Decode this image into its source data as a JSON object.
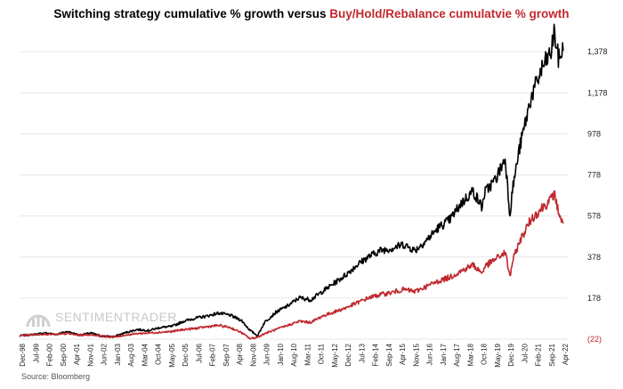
{
  "title": {
    "part1": "Switching strategy cumulative % growth versus ",
    "part2": "Buy/Hold/Rebalance cumulatvie % growth"
  },
  "watermark": {
    "text": "SENTIMENTRADER"
  },
  "source": "Source: Bloomberg",
  "colors": {
    "switching": "#000000",
    "buyhold": "#c0282d",
    "grid": "#e6e6e6"
  },
  "chart_data": {
    "type": "line",
    "title": "Switching strategy cumulative % growth versus Buy/Hold/Rebalance cumulatvie % growth",
    "xlabel": "",
    "ylabel": "",
    "y_axis_position": "right",
    "y_ticks": [
      -22,
      178,
      378,
      578,
      778,
      978,
      1178,
      1378
    ],
    "y_tick_labels": [
      "(22)",
      "178",
      "378",
      "578",
      "778",
      "978",
      "1,178",
      "1,378"
    ],
    "ylim": [
      -22,
      1500
    ],
    "x_tick_labels": [
      "Dec-98",
      "Jul-99",
      "Feb-00",
      "Sep-00",
      "Apr-01",
      "Nov-01",
      "Jun-02",
      "Jan-03",
      "Aug-03",
      "Mar-04",
      "Oct-04",
      "May-05",
      "Dec-05",
      "Jul-06",
      "Feb-07",
      "Sep-07",
      "Apr-08",
      "Nov-08",
      "Jun-09",
      "Jan-10",
      "Aug-10",
      "Mar-11",
      "Oct-11",
      "May-12",
      "Dec-12",
      "Jul-13",
      "Feb-14",
      "Sep-14",
      "Apr-15",
      "Nov-15",
      "Jun-16",
      "Jan-17",
      "Aug-17",
      "Mar-18",
      "Oct-18",
      "May-19",
      "Dec-19",
      "Jul-20",
      "Feb-21",
      "Sep-21",
      "Apr-22"
    ],
    "grid": true,
    "series": [
      {
        "color": "#000000",
        "x": [
          1998.92,
          1999.5,
          2000.0,
          2000.5,
          2001.0,
          2001.5,
          2002.0,
          2002.5,
          2003.0,
          2003.5,
          2004.0,
          2004.5,
          2005.0,
          2005.5,
          2006.0,
          2006.5,
          2007.0,
          2007.5,
          2008.0,
          2008.5,
          2008.88,
          2009.2,
          2009.5,
          2010.0,
          2010.5,
          2011.0,
          2011.5,
          2012.0,
          2012.5,
          2013.0,
          2013.5,
          2014.0,
          2014.5,
          2015.0,
          2015.5,
          2016.0,
          2016.5,
          2017.0,
          2017.5,
          2018.0,
          2018.5,
          2018.9,
          2019.0,
          2019.5,
          2019.9,
          2020.1,
          2020.2,
          2020.5,
          2021.0,
          2021.5,
          2021.9,
          2022.0,
          2022.2,
          2022.4
        ],
        "values": [
          -5,
          0,
          8,
          2,
          15,
          -2,
          8,
          -8,
          -10,
          10,
          25,
          20,
          35,
          40,
          65,
          80,
          90,
          105,
          95,
          70,
          20,
          -5,
          60,
          110,
          140,
          180,
          170,
          210,
          250,
          290,
          340,
          380,
          410,
          420,
          440,
          410,
          460,
          520,
          560,
          640,
          700,
          620,
          690,
          760,
          860,
          580,
          700,
          900,
          1150,
          1300,
          1380,
          1480,
          1340,
          1390
        ]
      },
      {
        "color": "#c0282d",
        "x": [
          1998.92,
          1999.5,
          2000.0,
          2000.5,
          2001.0,
          2001.5,
          2002.0,
          2002.5,
          2003.0,
          2003.5,
          2004.0,
          2004.5,
          2005.0,
          2005.5,
          2006.0,
          2006.5,
          2007.0,
          2007.5,
          2008.0,
          2008.5,
          2008.88,
          2009.2,
          2009.5,
          2010.0,
          2010.5,
          2011.0,
          2011.5,
          2012.0,
          2012.5,
          2013.0,
          2013.5,
          2014.0,
          2014.5,
          2015.0,
          2015.5,
          2016.0,
          2016.5,
          2017.0,
          2017.5,
          2018.0,
          2018.5,
          2018.9,
          2019.0,
          2019.5,
          2019.9,
          2020.1,
          2020.2,
          2020.5,
          2021.0,
          2021.5,
          2021.9,
          2022.0,
          2022.2,
          2022.4
        ],
        "values": [
          -5,
          0,
          3,
          0,
          5,
          -3,
          0,
          -8,
          -12,
          -2,
          5,
          8,
          12,
          15,
          25,
          30,
          38,
          45,
          35,
          10,
          -20,
          -12,
          5,
          25,
          45,
          65,
          60,
          90,
          110,
          130,
          155,
          180,
          195,
          205,
          220,
          210,
          235,
          260,
          280,
          310,
          340,
          300,
          330,
          370,
          400,
          280,
          350,
          450,
          560,
          620,
          660,
          690,
          600,
          530
        ]
      }
    ]
  }
}
